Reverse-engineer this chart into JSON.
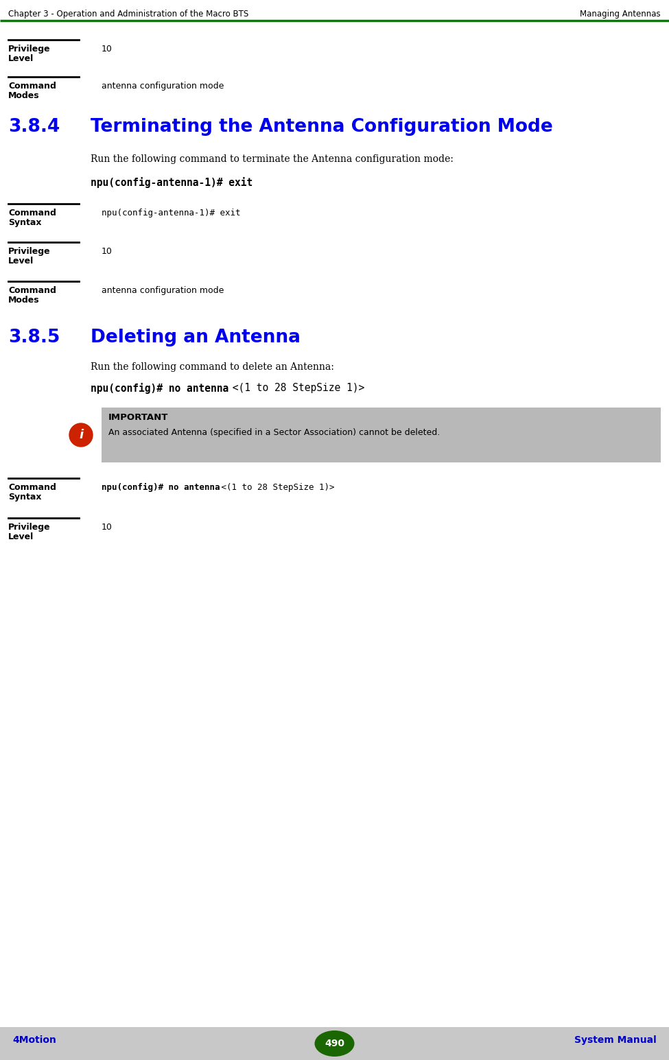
{
  "header_left": "Chapter 3 - Operation and Administration of the Macro BTS",
  "header_right": "Managing Antennas",
  "header_line_color": "#008000",
  "footer_left": "4Motion",
  "footer_center": "490",
  "footer_right": "System Manual",
  "footer_bg": "#c8c8c8",
  "footer_text_color": "#0000cc",
  "footer_page_bg": "#1a6600",
  "footer_page_text": "#ffffff",
  "section1_priv_label1": "Privilege",
  "section1_priv_label2": "Level",
  "section1_priv_value": "10",
  "section1_cmd_label1": "Command",
  "section1_cmd_label2": "Modes",
  "section1_cmd_value": "antenna configuration mode",
  "section_384_number": "3.8.4",
  "section_384_title": "Terminating the Antenna Configuration Mode",
  "section_384_intro": "Run the following command to terminate the Antenna configuration mode:",
  "section_384_command": "npu(config-antenna-1)# exit",
  "cmd_syntax_label1": "Command",
  "cmd_syntax_label2": "Syntax",
  "priv_level_label1": "Privilege",
  "priv_level_label2": "Level",
  "cmd_modes_label1": "Command",
  "cmd_modes_label2": "Modes",
  "table_384_cs_value": "npu(config-antenna-1)# exit",
  "table_384_pl_value": "10",
  "table_384_cm_value": "antenna configuration mode",
  "section_385_number": "3.8.5",
  "section_385_title": "Deleting an Antenna",
  "section_385_intro": "Run the following command to delete an Antenna:",
  "section_385_cmd_bold": "npu(config)# no antenna",
  "section_385_cmd_normal": " <(1 to 28 StepSize 1)>",
  "important_bg": "#b8b8b8",
  "important_label": "IMPORTANT",
  "important_text": "An associated Antenna (specified in a Sector Association) cannot be deleted.",
  "important_icon_color": "#cc2200",
  "table_385_cs_bold": "npu(config)# no antenna",
  "table_385_cs_normal": " <(1 to 28 StepSize 1)>",
  "table_385_pl_value": "10",
  "bg_color": "#ffffff",
  "text_color": "#000000",
  "section_color": "#0000ee",
  "line_color": "#000000",
  "mono_font": "monospace",
  "body_font": "DejaVu Serif",
  "sans_font": "DejaVu Sans"
}
